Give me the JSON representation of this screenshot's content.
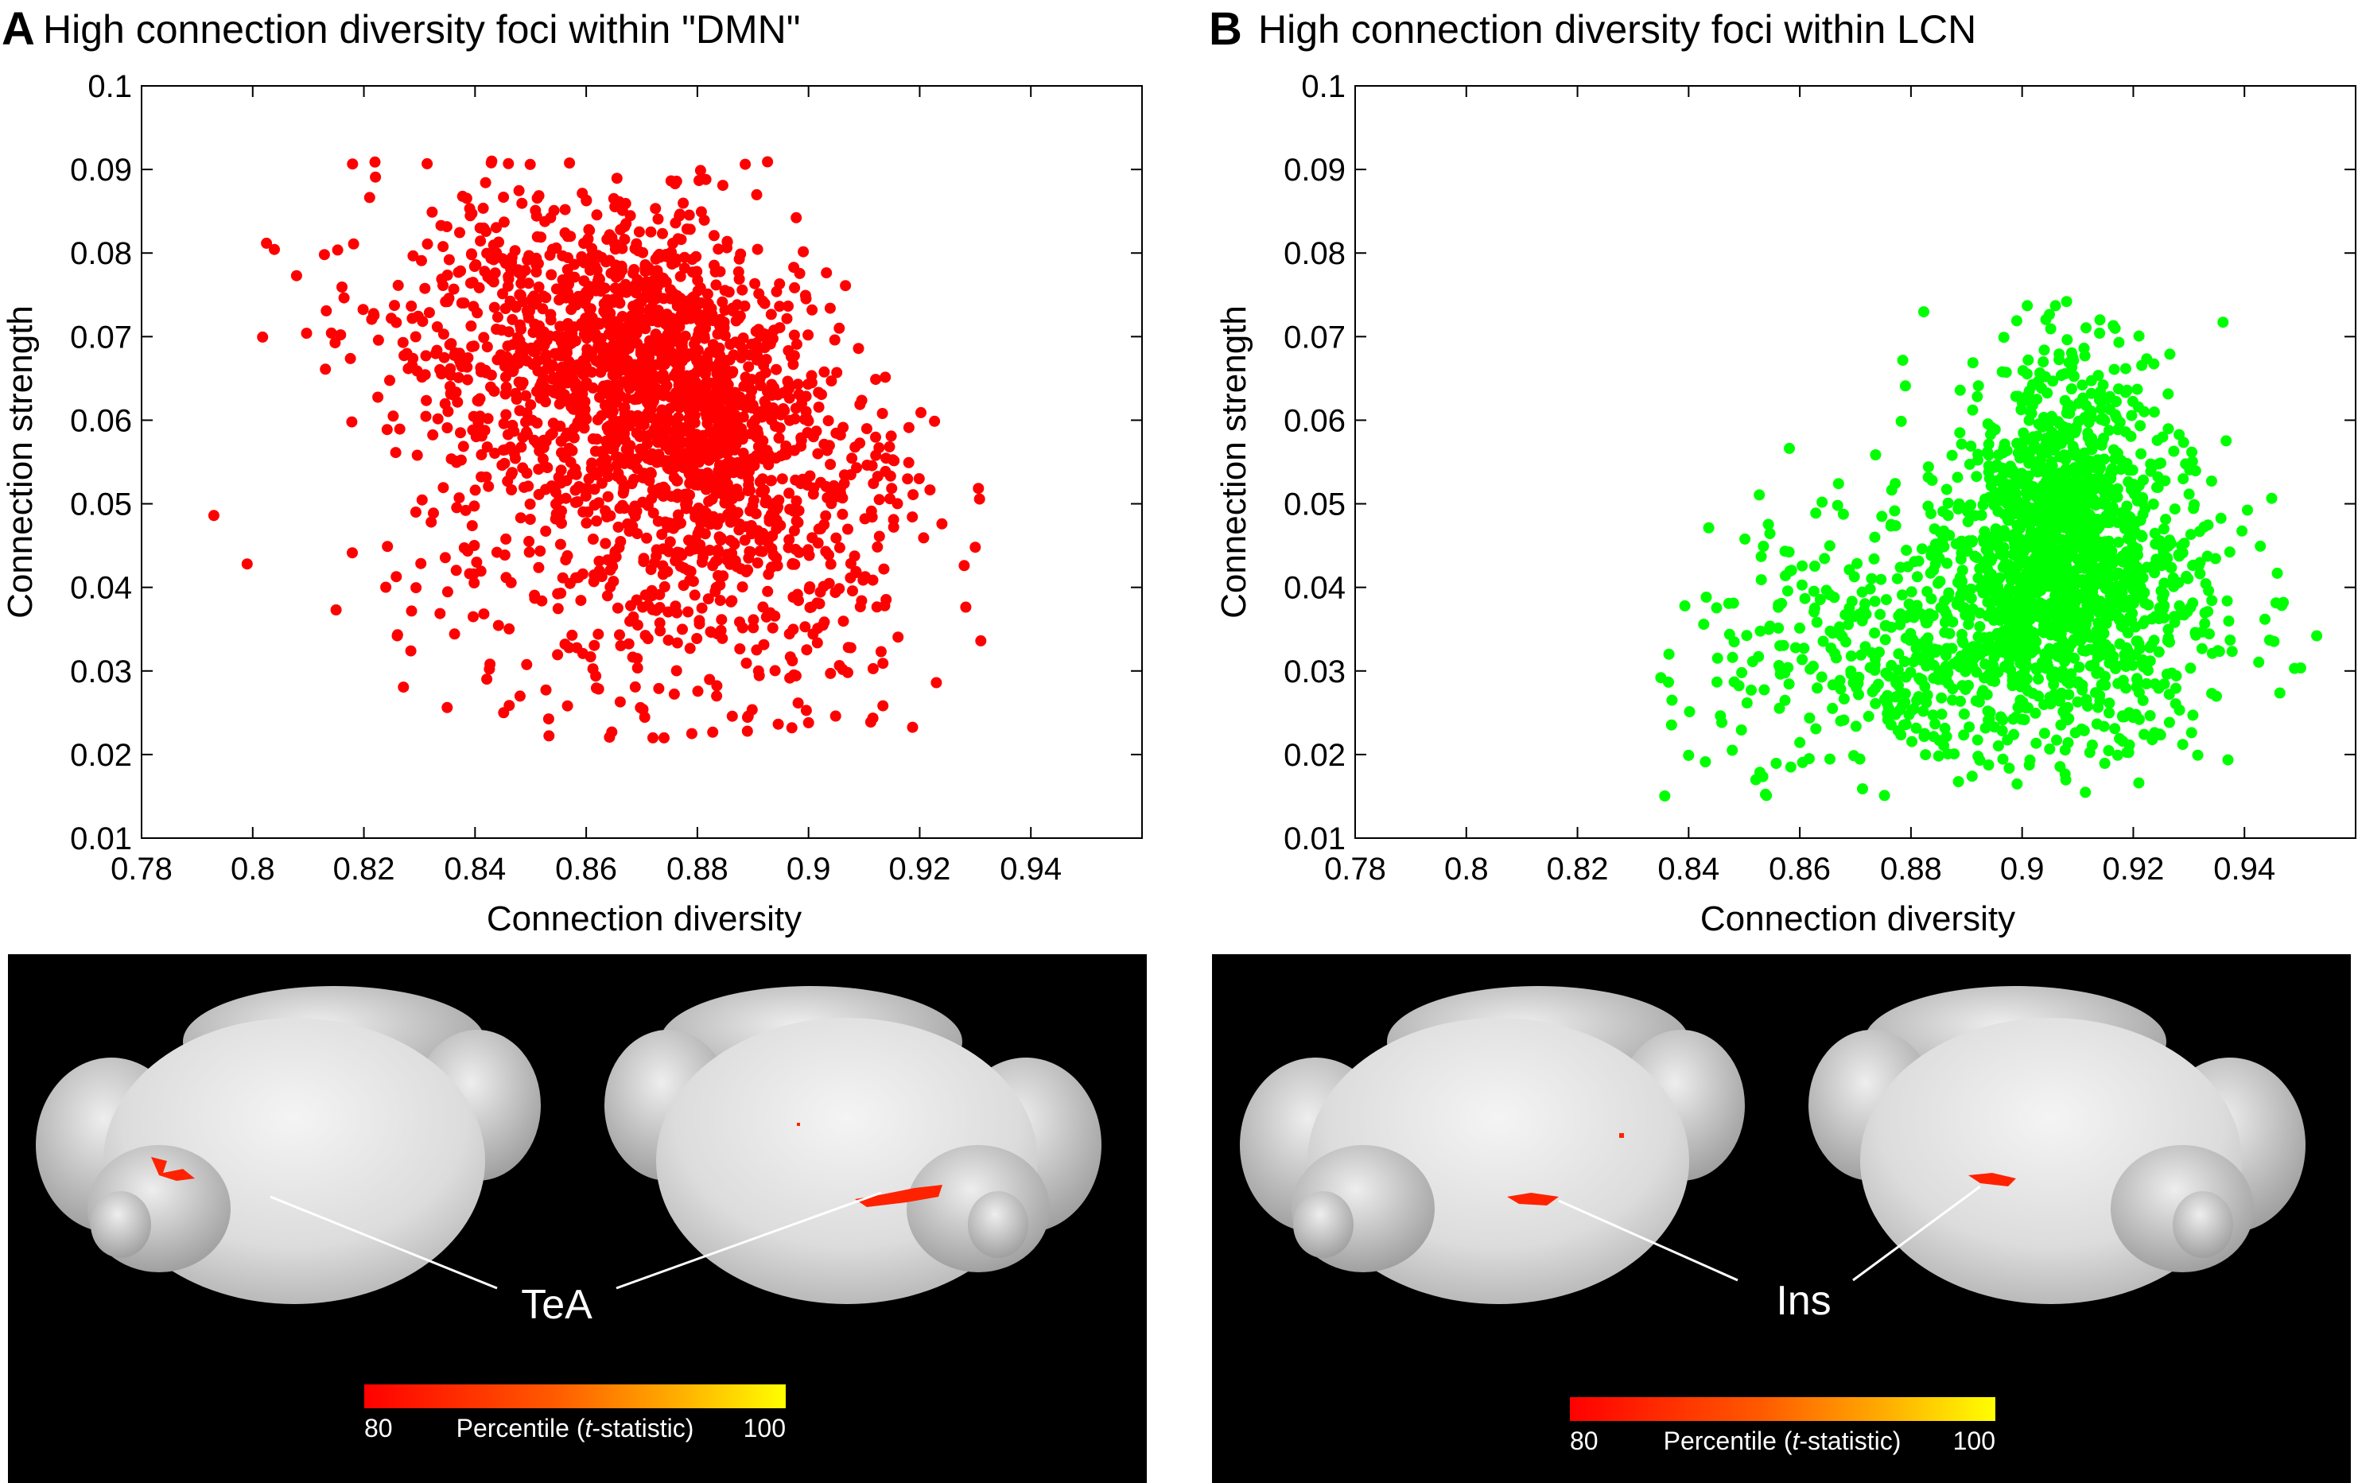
{
  "panels": [
    {
      "letter": "A",
      "title": "High connection diversity foci within \"DMN\"",
      "xlabel": "Connection diversity",
      "ylabel": "Connection strength",
      "point_color": "#ff0000",
      "brain_label": "TeA",
      "colorbar": {
        "low": "80",
        "mid_pre": "Percentile (",
        "mid_italic": "t",
        "mid_post": "-statistic)",
        "high": "100"
      }
    },
    {
      "letter": "B",
      "title": "High connection diversity foci within LCN",
      "xlabel": "Connection diversity",
      "ylabel": "Connection strength",
      "point_color": "#00ff00",
      "brain_label": "Ins",
      "colorbar": {
        "low": "80",
        "mid_pre": "Percentile (",
        "mid_italic": "t",
        "mid_post": "-statistic)",
        "high": "100"
      }
    }
  ],
  "colors": {
    "scatter_a": "#ff0000",
    "scatter_b": "#00ff00",
    "brain_bg": "#000000",
    "colorbar_low": "#ff0000",
    "colorbar_high": "#ffff00"
  },
  "chart_data": [
    {
      "type": "scatter",
      "title": "High connection diversity foci within \"DMN\"",
      "xlabel": "Connection diversity",
      "ylabel": "Connection strength",
      "xlim": [
        0.78,
        0.96
      ],
      "ylim": [
        0.01,
        0.1
      ],
      "xticks": [
        "0.78",
        "0.8",
        "0.82",
        "0.84",
        "0.86",
        "0.88",
        "0.9",
        "0.92",
        "0.94"
      ],
      "yticks": [
        "0.01",
        "0.02",
        "0.03",
        "0.04",
        "0.05",
        "0.06",
        "0.07",
        "0.08",
        "0.09",
        "0.1"
      ],
      "grid": false,
      "series": [
        {
          "color": "#ff0000",
          "n_points": 2200,
          "bulk_center": {
            "x": 0.868,
            "y": 0.064
          },
          "dense_core": {
            "x": 0.878,
            "y": 0.063
          },
          "x_range": [
            0.793,
            0.931
          ],
          "y_range": [
            0.022,
            0.091
          ],
          "points": [
            [
              0.793,
              0.0486
            ],
            [
              0.799,
              0.0428
            ],
            [
              0.826,
              0.0342
            ],
            [
              0.843,
              0.091
            ],
            [
              0.846,
              0.0907
            ],
            [
              0.872,
              0.022
            ],
            [
              0.874,
              0.022
            ],
            [
              0.879,
              0.0225
            ],
            [
              0.876,
              0.0883
            ],
            [
              0.889,
              0.0228
            ],
            [
              0.897,
              0.0232
            ],
            [
              0.9,
              0.0238
            ],
            [
              0.931,
              0.0336
            ],
            [
              0.923,
              0.0286
            ],
            [
              0.928,
              0.0426
            ],
            [
              0.93,
              0.0448
            ],
            [
              0.924,
              0.0476
            ],
            [
              0.815,
              0.0373
            ]
          ]
        }
      ]
    },
    {
      "type": "scatter",
      "title": "High connection diversity foci within LCN",
      "xlabel": "Connection diversity",
      "ylabel": "Connection strength",
      "xlim": [
        0.78,
        0.96
      ],
      "ylim": [
        0.01,
        0.1
      ],
      "xticks": [
        "0.78",
        "0.8",
        "0.82",
        "0.84",
        "0.86",
        "0.88",
        "0.9",
        "0.92",
        "0.94"
      ],
      "yticks": [
        "0.01",
        "0.02",
        "0.03",
        "0.04",
        "0.05",
        "0.06",
        "0.07",
        "0.08",
        "0.09",
        "0.1"
      ],
      "grid": false,
      "series": [
        {
          "color": "#00ff00",
          "n_points": 2000,
          "bulk_center": {
            "x": 0.907,
            "y": 0.046
          },
          "dense_core": {
            "x": 0.909,
            "y": 0.047
          },
          "x_range": [
            0.835,
            0.953
          ],
          "y_range": [
            0.015,
            0.074
          ],
          "points": [
            [
              0.835,
              0.0292
            ],
            [
              0.837,
              0.0265
            ],
            [
              0.84,
              0.0199
            ],
            [
              0.854,
              0.0151
            ],
            [
              0.908,
              0.0742
            ],
            [
              0.906,
              0.0737
            ],
            [
              0.914,
              0.072
            ],
            [
              0.921,
              0.0166
            ],
            [
              0.953,
              0.0342
            ],
            [
              0.949,
              0.0303
            ],
            [
              0.947,
              0.0382
            ],
            [
              0.864,
              0.0502
            ],
            [
              0.879,
              0.0641
            ],
            [
              0.891,
              0.0174
            ]
          ]
        }
      ]
    }
  ]
}
